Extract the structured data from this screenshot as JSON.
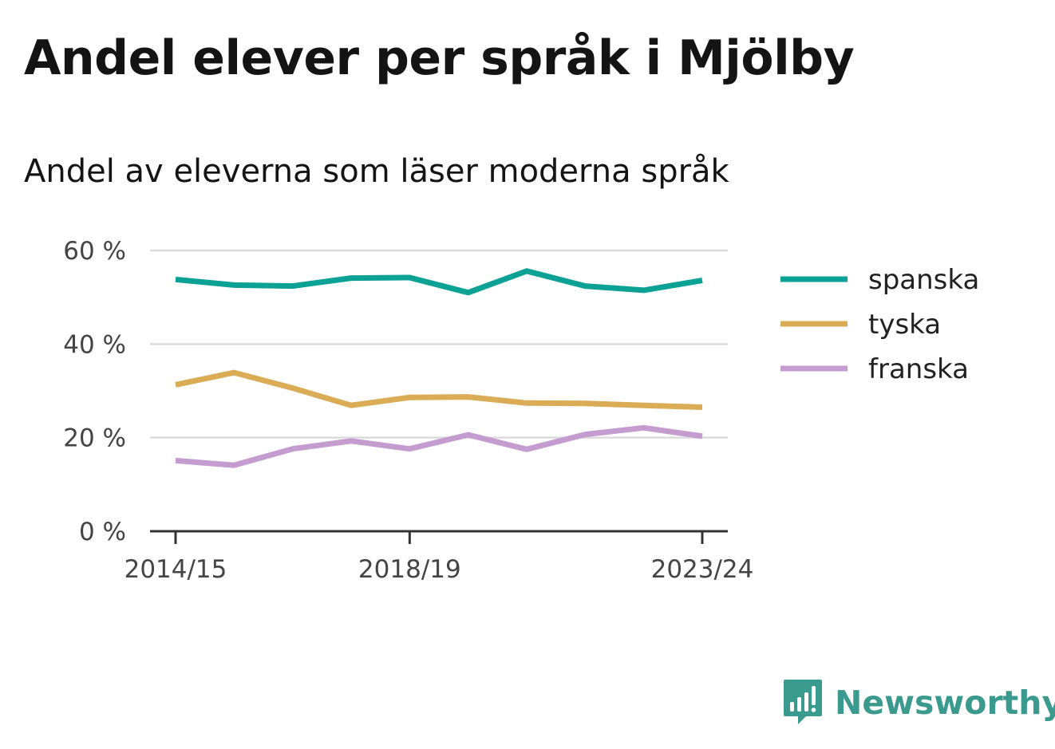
{
  "chart_data": {
    "type": "line",
    "title": "Andel elever per språk i Mjölby",
    "subtitle": "Andel av eleverna som läser moderna språk",
    "x": [
      "2014/15",
      "2015/16",
      "2016/17",
      "2017/18",
      "2018/19",
      "2019/20",
      "2020/21",
      "2021/22",
      "2022/23",
      "2023/24"
    ],
    "x_tick_labels": [
      "2014/15",
      "2018/19",
      "2023/24"
    ],
    "y_ticks": [
      0,
      20,
      40,
      60
    ],
    "y_tick_labels": [
      "0 %",
      "20 %",
      "40 %",
      "60 %"
    ],
    "ylim": [
      0,
      60
    ],
    "grid": true,
    "legend_position": "right",
    "series": [
      {
        "name": "spanska",
        "color": "#0ba195",
        "values": [
          53.8,
          52.6,
          52.4,
          54.1,
          54.2,
          51.0,
          55.6,
          52.4,
          51.5,
          53.6
        ]
      },
      {
        "name": "tyska",
        "color": "#d9ac55",
        "values": [
          31.3,
          33.9,
          30.6,
          26.9,
          28.6,
          28.7,
          27.4,
          27.3,
          26.9,
          26.5
        ]
      },
      {
        "name": "franska",
        "color": "#c49ccf",
        "values": [
          15.1,
          14.1,
          17.6,
          19.3,
          17.6,
          20.6,
          17.5,
          20.7,
          22.1,
          20.3
        ]
      }
    ]
  },
  "branding": {
    "name": "Newsworthy",
    "color": "#3b9a8e"
  }
}
